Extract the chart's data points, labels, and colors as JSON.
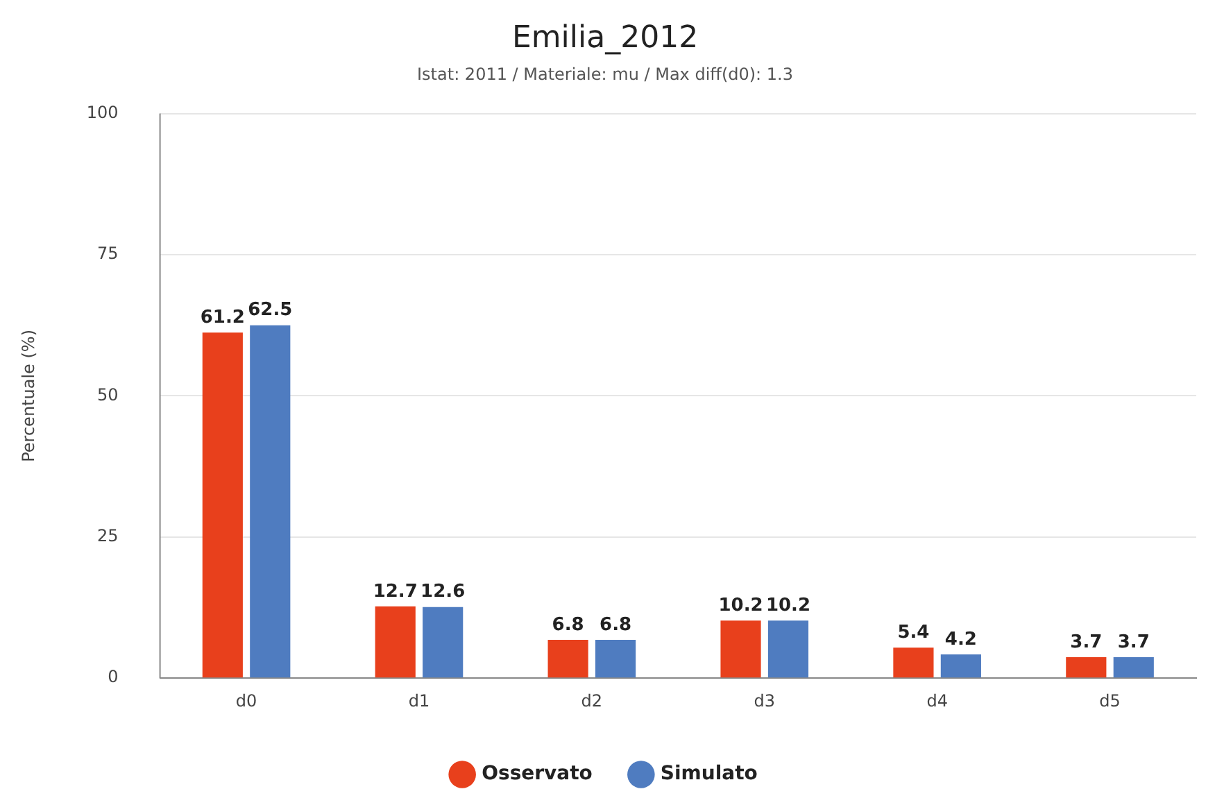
{
  "chart_data": {
    "type": "bar",
    "title": "Emilia_2012",
    "subtitle": "Istat: 2011 / Materiale: mu / Max diff(d0): 1.3",
    "ylabel": "Percentuale (%)",
    "categories": [
      "d0",
      "d1",
      "d2",
      "d3",
      "d4",
      "d5"
    ],
    "series": [
      {
        "name": "Osservato",
        "color": "#e8401c",
        "values": [
          61.2,
          12.7,
          6.8,
          10.2,
          5.4,
          3.7
        ]
      },
      {
        "name": "Simulato",
        "color": "#4f7cc0",
        "values": [
          62.5,
          12.6,
          6.8,
          10.2,
          4.2,
          3.7
        ]
      }
    ],
    "ylim": [
      0,
      100
    ],
    "yticks": [
      0,
      25,
      50,
      75,
      100
    ],
    "grid": "y",
    "legend": "bottom",
    "data_labels": true
  }
}
